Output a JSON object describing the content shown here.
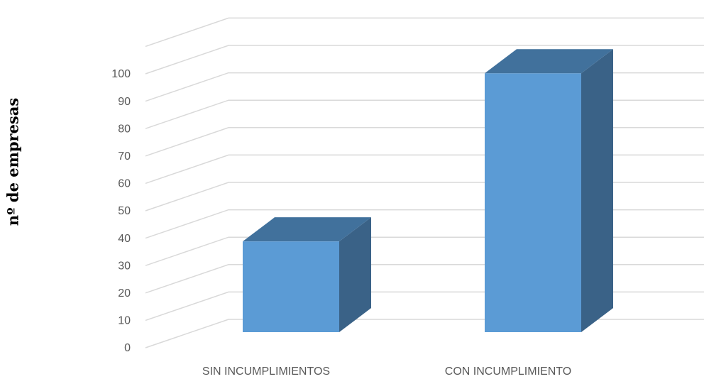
{
  "chart_data": {
    "type": "bar",
    "title": "",
    "xlabel": "",
    "ylabel": "nº de empresas",
    "categories": [
      "SIN INCUMPLIMIENTOS",
      "CON INCUMPLIMIENTO"
    ],
    "values": [
      34,
      97
    ],
    "ylim": [
      0,
      100
    ],
    "yticks": [
      0,
      10,
      20,
      30,
      40,
      50,
      60,
      70,
      80,
      90,
      100
    ],
    "grid": true,
    "legend": "none",
    "style": "3d-column",
    "colors": {
      "front": "#5B9BD5",
      "top": "#41719C",
      "side": "#3A6287",
      "grid": "#D9D9D9",
      "tick_text": "#595959"
    }
  }
}
